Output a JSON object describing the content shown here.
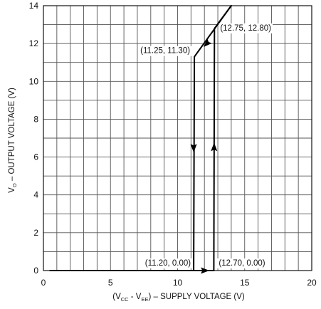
{
  "chart_data": {
    "type": "line",
    "xlabel": {
      "prefix": "(V",
      "sub1": "CC",
      "mid": " - V",
      "sub2": "EE",
      "suffix": ") – SUPPLY VOLTAGE (V)"
    },
    "ylabel": {
      "prefix": "V",
      "sub": "O",
      "suffix": " – OUTPUT VOLTAGE (V)"
    },
    "xlim": [
      0,
      20
    ],
    "ylim": [
      0,
      14
    ],
    "x_ticks": [
      0,
      5,
      10,
      15,
      20
    ],
    "y_ticks": [
      0,
      2,
      4,
      6,
      8,
      10,
      12,
      14
    ],
    "x_minor_step": 1,
    "y_minor_step": 1,
    "grid": true,
    "series": [
      {
        "direction": "decreasing",
        "points": [
          [
            14.0,
            14.0
          ],
          [
            11.25,
            11.3
          ],
          [
            11.2,
            0.0
          ],
          [
            0.5,
            0.0
          ]
        ]
      },
      {
        "direction": "increasing",
        "points": [
          [
            0.5,
            0.0
          ],
          [
            12.7,
            0.0
          ],
          [
            12.75,
            12.8
          ],
          [
            14.0,
            14.0
          ]
        ]
      }
    ],
    "arrows": [
      {
        "x": 11.2,
        "y": 6.5,
        "dir": "down"
      },
      {
        "x": 12.72,
        "y": 6.5,
        "dir": "up"
      },
      {
        "x": 12.0,
        "y": 0.0,
        "dir": "right"
      },
      {
        "x": 12.2,
        "y": 12.0,
        "dir": "down-left"
      }
    ],
    "annotations": [
      {
        "text": "(12.75, 12.80)",
        "x": 12.75,
        "y": 12.8
      },
      {
        "text": "(11.25, 11.30)",
        "x": 11.25,
        "y": 11.3
      },
      {
        "text": "(11.20, 0.00)",
        "x": 11.2,
        "y": 0.0
      },
      {
        "text": "(12.70, 0.00)",
        "x": 12.7,
        "y": 0.0
      }
    ]
  }
}
